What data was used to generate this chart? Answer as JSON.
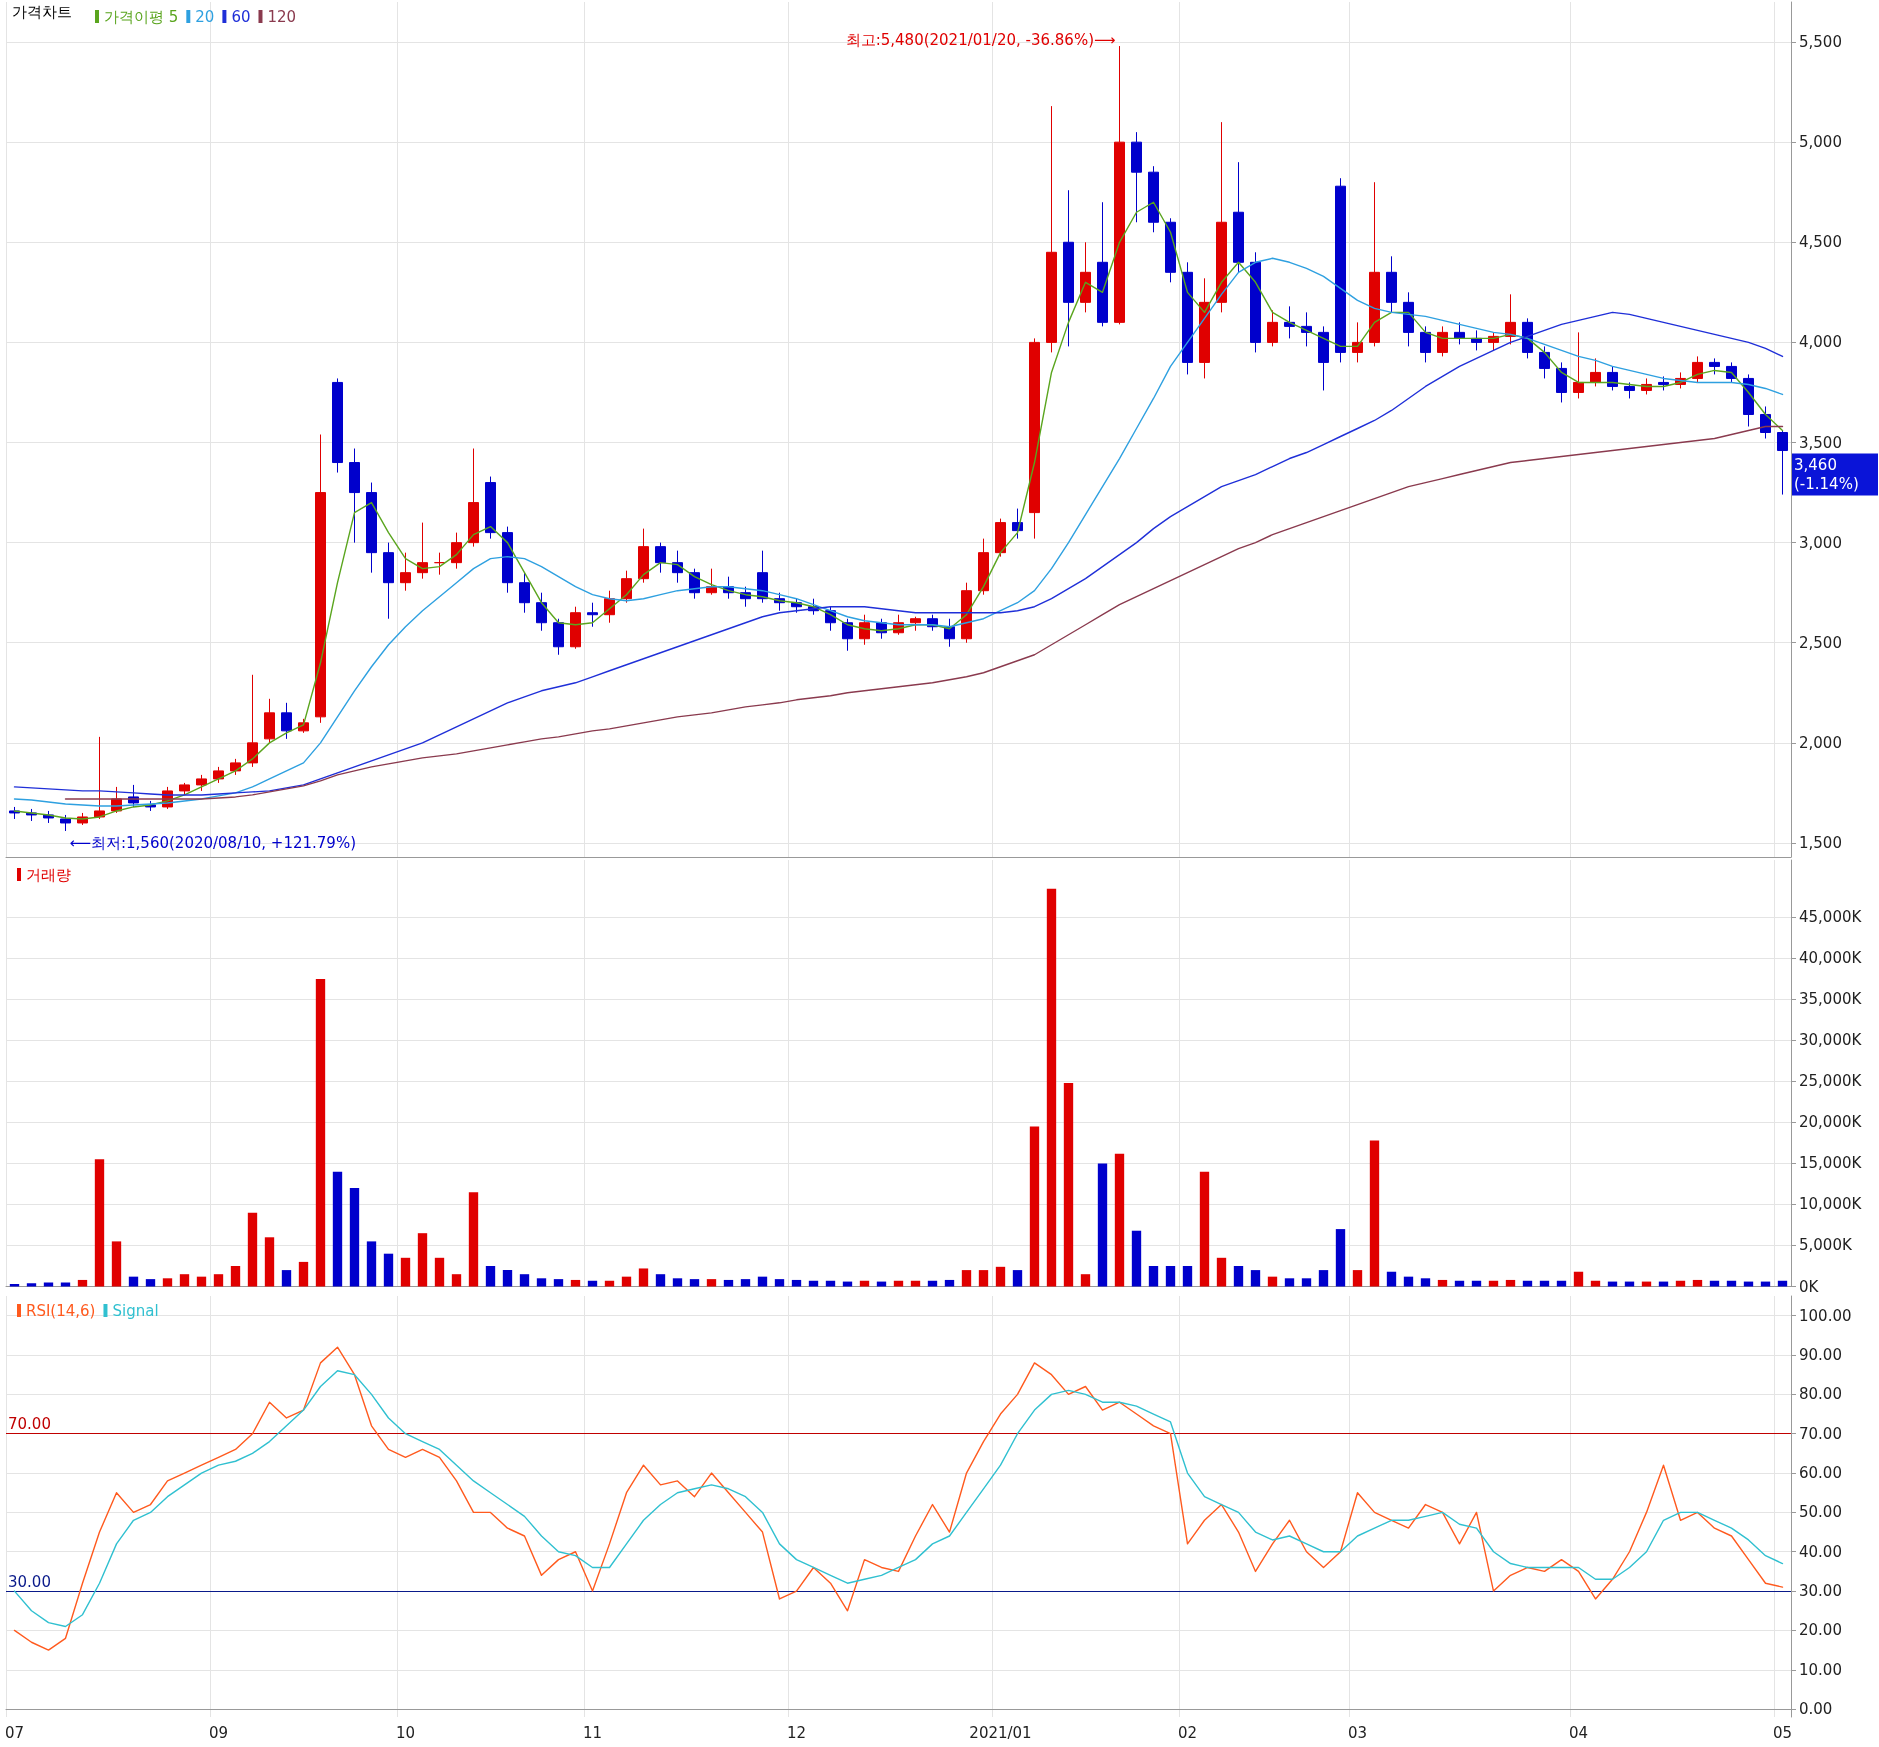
{
  "chart_data": [
    {
      "type": "candlestick",
      "title": "가격차트",
      "legend": "top left",
      "grid": true,
      "tick_labels": "y",
      "marker": "none",
      "categories": [
        "07",
        null,
        null,
        null,
        null,
        null,
        null,
        null,
        null,
        null,
        null,
        null,
        "09",
        null,
        null,
        null,
        null,
        null,
        null,
        null,
        null,
        null,
        null,
        "10",
        null,
        null,
        null,
        null,
        null,
        null,
        null,
        null,
        null,
        null,
        "11",
        null,
        null,
        null,
        null,
        null,
        null,
        null,
        null,
        null,
        null,
        null,
        "12",
        null,
        null,
        null,
        null,
        null,
        null,
        null,
        null,
        null,
        null,
        null,
        "2021/01",
        null,
        null,
        null,
        null,
        null,
        null,
        null,
        null,
        null,
        null,
        "02",
        null,
        null,
        null,
        null,
        null,
        null,
        null,
        null,
        null,
        "03",
        null,
        null,
        null,
        null,
        null,
        null,
        null,
        null,
        null,
        null,
        null,
        null,
        "04",
        null,
        null,
        null,
        null,
        null,
        null,
        null,
        null,
        null,
        null,
        null,
        "05"
      ],
      "ohlc": [
        [
          1660,
          1680,
          1620,
          1650
        ],
        [
          1650,
          1670,
          1610,
          1640
        ],
        [
          1640,
          1660,
          1600,
          1625
        ],
        [
          1620,
          1640,
          1560,
          1600
        ],
        [
          1600,
          1650,
          1590,
          1630
        ],
        [
          1630,
          2030,
          1620,
          1660
        ],
        [
          1660,
          1780,
          1650,
          1720
        ],
        [
          1730,
          1790,
          1680,
          1700
        ],
        [
          1690,
          1710,
          1660,
          1680
        ],
        [
          1680,
          1780,
          1670,
          1760
        ],
        [
          1760,
          1800,
          1740,
          1790
        ],
        [
          1790,
          1840,
          1760,
          1820
        ],
        [
          1820,
          1880,
          1800,
          1860
        ],
        [
          1860,
          1920,
          1840,
          1900
        ],
        [
          1900,
          2340,
          1880,
          2000
        ],
        [
          2020,
          2220,
          2000,
          2150
        ],
        [
          2150,
          2200,
          2020,
          2060
        ],
        [
          2060,
          2120,
          2050,
          2100
        ],
        [
          2130,
          3540,
          2100,
          3250
        ],
        [
          3800,
          3820,
          3350,
          3400
        ],
        [
          3400,
          3470,
          3000,
          3250
        ],
        [
          3250,
          3300,
          2850,
          2950
        ],
        [
          2950,
          3000,
          2620,
          2800
        ],
        [
          2800,
          2950,
          2760,
          2850
        ],
        [
          2850,
          3100,
          2820,
          2900
        ],
        [
          2900,
          2950,
          2840,
          2900
        ],
        [
          2900,
          3050,
          2870,
          3000
        ],
        [
          3000,
          3470,
          2980,
          3200
        ],
        [
          3300,
          3330,
          3020,
          3050
        ],
        [
          3050,
          3080,
          2750,
          2800
        ],
        [
          2800,
          2850,
          2650,
          2700
        ],
        [
          2700,
          2750,
          2560,
          2600
        ],
        [
          2600,
          2620,
          2440,
          2480
        ],
        [
          2480,
          2680,
          2470,
          2650
        ],
        [
          2650,
          2700,
          2580,
          2640
        ],
        [
          2640,
          2760,
          2600,
          2720
        ],
        [
          2720,
          2860,
          2700,
          2820
        ],
        [
          2820,
          3070,
          2800,
          2980
        ],
        [
          2980,
          3000,
          2850,
          2900
        ],
        [
          2900,
          2960,
          2800,
          2850
        ],
        [
          2850,
          2870,
          2720,
          2750
        ],
        [
          2750,
          2870,
          2740,
          2780
        ],
        [
          2780,
          2830,
          2720,
          2750
        ],
        [
          2750,
          2780,
          2680,
          2720
        ],
        [
          2850,
          2960,
          2700,
          2720
        ],
        [
          2720,
          2750,
          2660,
          2700
        ],
        [
          2700,
          2720,
          2650,
          2680
        ],
        [
          2680,
          2720,
          2640,
          2660
        ],
        [
          2660,
          2680,
          2560,
          2600
        ],
        [
          2600,
          2620,
          2460,
          2520
        ],
        [
          2520,
          2640,
          2490,
          2600
        ],
        [
          2600,
          2620,
          2520,
          2550
        ],
        [
          2550,
          2640,
          2540,
          2600
        ],
        [
          2600,
          2630,
          2560,
          2620
        ],
        [
          2620,
          2640,
          2560,
          2580
        ],
        [
          2580,
          2620,
          2480,
          2520
        ],
        [
          2520,
          2800,
          2500,
          2760
        ],
        [
          2760,
          3020,
          2740,
          2950
        ],
        [
          2950,
          3120,
          2930,
          3100
        ],
        [
          3100,
          3170,
          3020,
          3060
        ],
        [
          3150,
          4020,
          3020,
          4000
        ],
        [
          4000,
          5180,
          3950,
          4450
        ],
        [
          4500,
          4760,
          3980,
          4200
        ],
        [
          4200,
          4500,
          4150,
          4350
        ],
        [
          4400,
          4700,
          4080,
          4100
        ],
        [
          4100,
          5480,
          4090,
          5000
        ],
        [
          5000,
          5050,
          4600,
          4850
        ],
        [
          4850,
          4880,
          4550,
          4600
        ],
        [
          4600,
          4620,
          4300,
          4350
        ],
        [
          4350,
          4400,
          3840,
          3900
        ],
        [
          3900,
          4320,
          3820,
          4200
        ],
        [
          4200,
          5100,
          4150,
          4600
        ],
        [
          4650,
          4900,
          4350,
          4400
        ],
        [
          4400,
          4450,
          3950,
          4000
        ],
        [
          4000,
          4160,
          3980,
          4100
        ],
        [
          4100,
          4180,
          4020,
          4080
        ],
        [
          4080,
          4150,
          3980,
          4050
        ],
        [
          4050,
          4080,
          3760,
          3900
        ],
        [
          4780,
          4820,
          3900,
          3950
        ],
        [
          3950,
          4100,
          3900,
          4000
        ],
        [
          4000,
          4800,
          3980,
          4350
        ],
        [
          4350,
          4430,
          4150,
          4200
        ],
        [
          4200,
          4250,
          3980,
          4050
        ],
        [
          4050,
          4080,
          3900,
          3950
        ],
        [
          3950,
          4080,
          3930,
          4050
        ],
        [
          4050,
          4100,
          3990,
          4020
        ],
        [
          4020,
          4060,
          3960,
          4000
        ],
        [
          4000,
          4050,
          3960,
          4030
        ],
        [
          4030,
          4240,
          3990,
          4100
        ],
        [
          4100,
          4120,
          3920,
          3950
        ],
        [
          3950,
          3980,
          3820,
          3870
        ],
        [
          3870,
          3900,
          3700,
          3750
        ],
        [
          3750,
          4050,
          3720,
          3800
        ],
        [
          3800,
          3920,
          3780,
          3850
        ],
        [
          3850,
          3880,
          3760,
          3780
        ],
        [
          3780,
          3800,
          3720,
          3760
        ],
        [
          3760,
          3820,
          3740,
          3790
        ],
        [
          3800,
          3830,
          3760,
          3790
        ],
        [
          3790,
          3850,
          3770,
          3820
        ],
        [
          3820,
          3930,
          3800,
          3900
        ],
        [
          3900,
          3920,
          3840,
          3880
        ],
        [
          3880,
          3900,
          3800,
          3820
        ],
        [
          3820,
          3840,
          3580,
          3640
        ],
        [
          3640,
          3680,
          3520,
          3550
        ],
        [
          3550,
          3560,
          3240,
          3460
        ]
      ],
      "colors": [
        "#0000cc",
        "#0000cc",
        "#0000cc",
        "#0000cc",
        "#e00000",
        "#e00000",
        "#e00000",
        "#0000cc",
        "#0000cc",
        "#e00000",
        "#e00000",
        "#e00000",
        "#e00000",
        "#e00000",
        "#e00000",
        "#e00000",
        "#0000cc",
        "#e00000",
        "#e00000",
        "#0000cc",
        "#0000cc",
        "#0000cc",
        "#0000cc",
        "#e00000",
        "#e00000",
        "#e00000",
        "#e00000",
        "#e00000",
        "#0000cc",
        "#0000cc",
        "#0000cc",
        "#0000cc",
        "#0000cc",
        "#e00000",
        "#0000cc",
        "#e00000",
        "#e00000",
        "#e00000",
        "#0000cc",
        "#0000cc",
        "#0000cc",
        "#e00000",
        "#0000cc",
        "#0000cc",
        "#0000cc",
        "#0000cc",
        "#0000cc",
        "#0000cc",
        "#0000cc",
        "#0000cc",
        "#e00000",
        "#0000cc",
        "#e00000",
        "#e00000",
        "#0000cc",
        "#0000cc",
        "#e00000",
        "#e00000",
        "#e00000",
        "#0000cc",
        "#e00000",
        "#e00000",
        "#0000cc",
        "#e00000",
        "#0000cc",
        "#e00000",
        "#0000cc",
        "#0000cc",
        "#0000cc",
        "#0000cc",
        "#e00000",
        "#e00000",
        "#0000cc",
        "#0000cc",
        "#e00000",
        "#0000cc",
        "#0000cc",
        "#0000cc",
        "#0000cc",
        "#e00000",
        "#e00000",
        "#0000cc",
        "#0000cc",
        "#0000cc",
        "#e00000",
        "#0000cc",
        "#0000cc",
        "#e00000",
        "#e00000",
        "#0000cc",
        "#0000cc",
        "#0000cc",
        "#e00000",
        "#e00000",
        "#0000cc",
        "#0000cc",
        "#e00000",
        "#0000cc",
        "#e00000",
        "#e00000",
        "#0000cc",
        "#0000cc",
        "#0000cc",
        "#0000cc",
        "#0000cc"
      ],
      "series": [
        {
          "name": "가격이평 5",
          "type": "line",
          "color": "#5aa51e",
          "values": [
            1660,
            1650,
            1640,
            1625,
            1620,
            1630,
            1660,
            1680,
            1690,
            1710,
            1740,
            1780,
            1820,
            1860,
            1920,
            2000,
            2050,
            2090,
            2400,
            2800,
            3150,
            3200,
            3050,
            2920,
            2870,
            2880,
            2940,
            3040,
            3080,
            3000,
            2850,
            2700,
            2600,
            2590,
            2600,
            2670,
            2740,
            2840,
            2900,
            2890,
            2830,
            2790,
            2760,
            2740,
            2730,
            2710,
            2700,
            2680,
            2640,
            2590,
            2570,
            2560,
            2570,
            2590,
            2590,
            2570,
            2640,
            2780,
            2950,
            3050,
            3400,
            3850,
            4100,
            4300,
            4250,
            4500,
            4650,
            4700,
            4550,
            4250,
            4150,
            4300,
            4400,
            4300,
            4150,
            4100,
            4060,
            4020,
            3980,
            3980,
            4100,
            4150,
            4150,
            4050,
            4020,
            4020,
            4020,
            4020,
            4040,
            4020,
            3950,
            3850,
            3800,
            3800,
            3800,
            3790,
            3780,
            3780,
            3800,
            3840,
            3860,
            3850,
            3750,
            3640,
            3560
          ]
        },
        {
          "name": "20",
          "type": "line",
          "color": "#2ea0e0",
          "values": [
            1720,
            1715,
            1705,
            1695,
            1690,
            1685,
            1685,
            1690,
            1695,
            1700,
            1710,
            1720,
            1735,
            1750,
            1780,
            1820,
            1860,
            1900,
            2000,
            2130,
            2260,
            2380,
            2490,
            2580,
            2660,
            2730,
            2800,
            2870,
            2920,
            2930,
            2920,
            2880,
            2830,
            2780,
            2740,
            2720,
            2710,
            2720,
            2740,
            2760,
            2770,
            2780,
            2780,
            2770,
            2760,
            2740,
            2720,
            2690,
            2660,
            2630,
            2610,
            2600,
            2590,
            2590,
            2590,
            2580,
            2600,
            2620,
            2660,
            2700,
            2760,
            2870,
            3000,
            3140,
            3280,
            3420,
            3570,
            3720,
            3880,
            4000,
            4120,
            4240,
            4350,
            4400,
            4420,
            4400,
            4370,
            4330,
            4270,
            4210,
            4170,
            4150,
            4140,
            4130,
            4110,
            4090,
            4070,
            4050,
            4040,
            4020,
            3990,
            3960,
            3930,
            3910,
            3880,
            3860,
            3840,
            3820,
            3810,
            3800,
            3800,
            3800,
            3790,
            3770,
            3740
          ]
        },
        {
          "name": "60",
          "type": "line",
          "color": "#1f2fd8",
          "values": [
            1780,
            1775,
            1770,
            1765,
            1760,
            1760,
            1755,
            1750,
            1745,
            1740,
            1740,
            1740,
            1745,
            1750,
            1755,
            1760,
            1775,
            1790,
            1820,
            1850,
            1880,
            1910,
            1940,
            1970,
            2000,
            2040,
            2080,
            2120,
            2160,
            2200,
            2230,
            2260,
            2280,
            2300,
            2330,
            2360,
            2390,
            2420,
            2450,
            2480,
            2510,
            2540,
            2570,
            2600,
            2630,
            2650,
            2660,
            2670,
            2680,
            2680,
            2680,
            2670,
            2660,
            2650,
            2650,
            2650,
            2650,
            2650,
            2650,
            2660,
            2680,
            2720,
            2770,
            2820,
            2880,
            2940,
            3000,
            3070,
            3130,
            3180,
            3230,
            3280,
            3310,
            3340,
            3380,
            3420,
            3450,
            3490,
            3530,
            3570,
            3610,
            3660,
            3720,
            3780,
            3830,
            3880,
            3920,
            3960,
            4000,
            4030,
            4060,
            4090,
            4110,
            4130,
            4150,
            4140,
            4120,
            4100,
            4080,
            4060,
            4040,
            4020,
            4000,
            3970,
            3930
          ]
        },
        {
          "name": "120",
          "type": "line",
          "color": "#8a3a4e",
          "values": [
            null,
            null,
            null,
            1720,
            1720,
            1720,
            1720,
            1720,
            1720,
            1720,
            1720,
            1720,
            1725,
            1730,
            1740,
            1755,
            1770,
            1785,
            1810,
            1840,
            1860,
            1880,
            1895,
            1910,
            1925,
            1935,
            1945,
            1960,
            1975,
            1990,
            2005,
            2020,
            2030,
            2045,
            2060,
            2070,
            2085,
            2100,
            2115,
            2130,
            2140,
            2150,
            2165,
            2180,
            2190,
            2200,
            2215,
            2225,
            2235,
            2250,
            2260,
            2270,
            2280,
            2290,
            2300,
            2315,
            2330,
            2350,
            2380,
            2410,
            2440,
            2490,
            2540,
            2590,
            2640,
            2690,
            2730,
            2770,
            2810,
            2850,
            2890,
            2930,
            2970,
            3000,
            3040,
            3070,
            3100,
            3130,
            3160,
            3190,
            3220,
            3250,
            3280,
            3300,
            3320,
            3340,
            3360,
            3380,
            3400,
            3410,
            3420,
            3430,
            3440,
            3450,
            3460,
            3470,
            3480,
            3490,
            3500,
            3510,
            3520,
            3540,
            3560,
            3580,
            3580
          ]
        }
      ],
      "ylim": [
        1430,
        5700
      ],
      "yticks": [
        {
          "value": 1500,
          "label": "1,500"
        },
        {
          "value": 2000,
          "label": "2,000"
        },
        {
          "value": 2500,
          "label": "2,500"
        },
        {
          "value": 3000,
          "label": "3,000"
        },
        {
          "value": 3500,
          "label": "3,500"
        },
        {
          "value": 4000,
          "label": "4,000"
        },
        {
          "value": 4500,
          "label": "4,500"
        },
        {
          "value": 5000,
          "label": "5,000"
        },
        {
          "value": 5500,
          "label": "5,500"
        }
      ],
      "annotations": [
        "최고:5,480(2021/01/20, -36.86%)⟶",
        "⟵최저:1,560(2020/08/10, +121.79%)",
        "3,460\n(-1.14%)"
      ]
    },
    {
      "type": "bar",
      "legend": "top left",
      "grid": true,
      "tick_labels": "y",
      "categories": [
        "07",
        null,
        null,
        null,
        null,
        null,
        null,
        null,
        null,
        null,
        null,
        null,
        "09",
        null,
        null,
        null,
        null,
        null,
        null,
        null,
        null,
        null,
        null,
        "10",
        null,
        null,
        null,
        null,
        null,
        null,
        null,
        null,
        null,
        null,
        "11",
        null,
        null,
        null,
        null,
        null,
        null,
        null,
        null,
        null,
        null,
        null,
        "12",
        null,
        null,
        null,
        null,
        null,
        null,
        null,
        null,
        null,
        null,
        null,
        "2021/01",
        null,
        null,
        null,
        null,
        null,
        null,
        null,
        null,
        null,
        null,
        "02",
        null,
        null,
        null,
        null,
        null,
        null,
        null,
        null,
        null,
        "03",
        null,
        null,
        null,
        null,
        null,
        null,
        null,
        null,
        null,
        null,
        null,
        null,
        "04",
        null,
        null,
        null,
        null,
        null,
        null,
        null,
        null,
        null,
        null,
        null,
        "05"
      ],
      "series": [
        {
          "name": "거래량",
          "color": "#e00000",
          "colors": [
            "#0000cc",
            "#0000cc",
            "#0000cc",
            "#0000cc",
            "#e00000",
            "#e00000",
            "#e00000",
            "#0000cc",
            "#0000cc",
            "#e00000",
            "#e00000",
            "#e00000",
            "#e00000",
            "#e00000",
            "#e00000",
            "#e00000",
            "#0000cc",
            "#e00000",
            "#e00000",
            "#0000cc",
            "#0000cc",
            "#0000cc",
            "#0000cc",
            "#e00000",
            "#e00000",
            "#e00000",
            "#e00000",
            "#e00000",
            "#0000cc",
            "#0000cc",
            "#0000cc",
            "#0000cc",
            "#0000cc",
            "#e00000",
            "#0000cc",
            "#e00000",
            "#e00000",
            "#e00000",
            "#0000cc",
            "#0000cc",
            "#0000cc",
            "#e00000",
            "#0000cc",
            "#0000cc",
            "#0000cc",
            "#0000cc",
            "#0000cc",
            "#0000cc",
            "#0000cc",
            "#0000cc",
            "#e00000",
            "#0000cc",
            "#e00000",
            "#e00000",
            "#0000cc",
            "#0000cc",
            "#e00000",
            "#e00000",
            "#e00000",
            "#0000cc",
            "#e00000",
            "#e00000",
            "#e00000",
            "#e00000",
            "#0000cc",
            "#e00000",
            "#0000cc",
            "#0000cc",
            "#0000cc",
            "#0000cc",
            "#e00000",
            "#e00000",
            "#0000cc",
            "#0000cc",
            "#e00000",
            "#0000cc",
            "#0000cc",
            "#0000cc",
            "#0000cc",
            "#e00000",
            "#e00000",
            "#0000cc",
            "#0000cc",
            "#0000cc",
            "#e00000",
            "#0000cc",
            "#0000cc",
            "#e00000",
            "#e00000",
            "#0000cc",
            "#0000cc",
            "#0000cc",
            "#e00000",
            "#e00000",
            "#0000cc",
            "#0000cc",
            "#e00000",
            "#0000cc",
            "#e00000",
            "#e00000",
            "#0000cc",
            "#0000cc",
            "#0000cc",
            "#0000cc",
            "#0000cc"
          ],
          "values": [
            300,
            400,
            500,
            500,
            800,
            15500,
            5500,
            1200,
            900,
            1000,
            1500,
            1200,
            1500,
            2500,
            9000,
            6000,
            2000,
            3000,
            37500,
            14000,
            12000,
            5500,
            4000,
            3500,
            6500,
            3500,
            1500,
            11500,
            2500,
            2000,
            1500,
            1000,
            900,
            800,
            700,
            700,
            1200,
            2200,
            1500,
            1000,
            900,
            900,
            800,
            900,
            1200,
            900,
            800,
            700,
            700,
            600,
            700,
            600,
            700,
            700,
            700,
            800,
            2000,
            2000,
            2400,
            2000,
            19500,
            48500,
            24800,
            1500,
            15000,
            16200,
            6800,
            2500,
            2500,
            2500,
            14000,
            3500,
            2500,
            2000,
            1200,
            1000,
            1000,
            2000,
            7000,
            2000,
            17800,
            1800,
            1200,
            1000,
            800,
            700,
            700,
            700,
            800,
            700,
            700,
            700,
            1800,
            700,
            600,
            600,
            600,
            600,
            700,
            800,
            700,
            700,
            600,
            600,
            700
          ]
        }
      ],
      "ylim": [
        0,
        52000
      ],
      "yticks": [
        {
          "value": 0,
          "label": "0K"
        },
        {
          "value": 5000,
          "label": "5,000K"
        },
        {
          "value": 10000,
          "label": "10,000K"
        },
        {
          "value": 15000,
          "label": "15,000K"
        },
        {
          "value": 20000,
          "label": "20,000K"
        },
        {
          "value": 25000,
          "label": "25,000K"
        },
        {
          "value": 30000,
          "label": "30,000K"
        },
        {
          "value": 35000,
          "label": "35,000K"
        },
        {
          "value": 40000,
          "label": "40,000K"
        },
        {
          "value": 45000,
          "label": "45,000K"
        }
      ]
    },
    {
      "type": "line",
      "legend": "top left",
      "grid": true,
      "marker": "none",
      "categories": [
        "07",
        null,
        null,
        null,
        null,
        null,
        null,
        null,
        null,
        null,
        null,
        null,
        "09",
        null,
        null,
        null,
        null,
        null,
        null,
        null,
        null,
        null,
        null,
        "10",
        null,
        null,
        null,
        null,
        null,
        null,
        null,
        null,
        null,
        null,
        "11",
        null,
        null,
        null,
        null,
        null,
        null,
        null,
        null,
        null,
        null,
        null,
        "12",
        null,
        null,
        null,
        null,
        null,
        null,
        null,
        null,
        null,
        null,
        null,
        "2021/01",
        null,
        null,
        null,
        null,
        null,
        null,
        null,
        null,
        null,
        null,
        "02",
        null,
        null,
        null,
        null,
        null,
        null,
        null,
        null,
        null,
        "03",
        null,
        null,
        null,
        null,
        null,
        null,
        null,
        null,
        null,
        null,
        null,
        null,
        "04",
        null,
        null,
        null,
        null,
        null,
        null,
        null,
        null,
        null,
        null,
        null,
        "05"
      ],
      "series": [
        {
          "name": "RSI(14,6)",
          "color": "#ff5a1e",
          "values": [
            20,
            17,
            15,
            18,
            32,
            45,
            55,
            50,
            52,
            58,
            60,
            62,
            64,
            66,
            70,
            78,
            74,
            76,
            88,
            92,
            85,
            72,
            66,
            64,
            66,
            64,
            58,
            50,
            50,
            46,
            44,
            34,
            38,
            40,
            30,
            42,
            55,
            62,
            57,
            58,
            54,
            60,
            55,
            50,
            45,
            28,
            30,
            36,
            32,
            25,
            38,
            36,
            35,
            44,
            52,
            45,
            60,
            68,
            75,
            80,
            88,
            85,
            80,
            82,
            76,
            78,
            75,
            72,
            70,
            42,
            48,
            52,
            45,
            35,
            42,
            48,
            40,
            36,
            40,
            55,
            50,
            48,
            46,
            52,
            50,
            42,
            50,
            30,
            34,
            36,
            35,
            38,
            35,
            28,
            33,
            40,
            50,
            62,
            48,
            50,
            46,
            44,
            38,
            32,
            31
          ]
        },
        {
          "name": "Signal",
          "color": "#30c0d0",
          "values": [
            30,
            25,
            22,
            21,
            24,
            32,
            42,
            48,
            50,
            54,
            57,
            60,
            62,
            63,
            65,
            68,
            72,
            76,
            82,
            86,
            85,
            80,
            74,
            70,
            68,
            66,
            62,
            58,
            55,
            52,
            49,
            44,
            40,
            39,
            36,
            36,
            42,
            48,
            52,
            55,
            56,
            57,
            56,
            54,
            50,
            42,
            38,
            36,
            34,
            32,
            33,
            34,
            36,
            38,
            42,
            44,
            50,
            56,
            62,
            70,
            76,
            80,
            81,
            80,
            78,
            78,
            77,
            75,
            73,
            60,
            54,
            52,
            50,
            45,
            43,
            44,
            42,
            40,
            40,
            44,
            46,
            48,
            48,
            49,
            50,
            47,
            46,
            40,
            37,
            36,
            36,
            36,
            36,
            33,
            33,
            36,
            40,
            48,
            50,
            50,
            48,
            46,
            43,
            39,
            37
          ]
        }
      ],
      "ylim": [
        -2,
        105
      ],
      "yticks": [
        {
          "value": 0,
          "label": "0.00"
        },
        {
          "value": 10,
          "label": "10.00"
        },
        {
          "value": 20,
          "label": "20.00"
        },
        {
          "value": 30,
          "label": "30.00"
        },
        {
          "value": 40,
          "label": "40.00"
        },
        {
          "value": 50,
          "label": "50.00"
        },
        {
          "value": 60,
          "label": "60.00"
        },
        {
          "value": 70,
          "label": "70.00"
        },
        {
          "value": 80,
          "label": "80.00"
        },
        {
          "value": 90,
          "label": "90.00"
        },
        {
          "value": 100,
          "label": "100.00"
        }
      ],
      "ref_lines": [
        {
          "axis": "y",
          "value": 70,
          "label": "70.00",
          "color": "#c00000"
        },
        {
          "axis": "y",
          "value": 30,
          "label": "30.00",
          "color": "#0a1a8a"
        }
      ]
    }
  ]
}
